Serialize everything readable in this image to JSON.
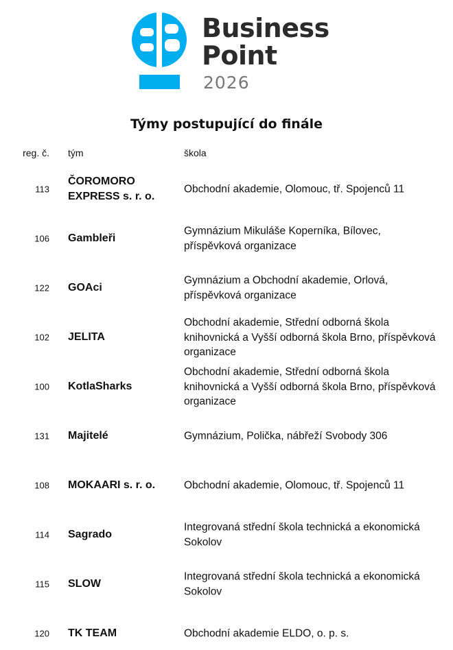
{
  "brand": {
    "line1": "Business",
    "line2": "Point",
    "year": "2026",
    "color": "#00aeef"
  },
  "title": "Týmy postupující do finále",
  "headers": {
    "reg": "reg. č.",
    "team": "tým",
    "school": "škola"
  },
  "rows": [
    {
      "reg": "113",
      "team": "ČOROMORO EXPRESS s. r. o.",
      "school": "Obchodní akademie, Olomouc, tř. Spojenců 11"
    },
    {
      "reg": "106",
      "team": "Gambleři",
      "school": "Gymnázium Mikuláše Koperníka, Bílovec, příspěvková organizace"
    },
    {
      "reg": "122",
      "team": "GOAci",
      "school": "Gymnázium a Obchodní akademie, Orlová, příspěvková organizace"
    },
    {
      "reg": "102",
      "team": "JELITA",
      "school": "Obchodní akademie, Střední odborná škola knihovnická a Vyšší odborná škola Brno, příspěvková organizace"
    },
    {
      "reg": "100",
      "team": "KotlaSharks",
      "school": "Obchodní akademie, Střední odborná škola knihovnická a Vyšší odborná škola Brno, příspěvková organizace"
    },
    {
      "reg": "131",
      "team": "Majitelé",
      "school": "Gymnázium, Polička, nábřeží Svobody 306"
    },
    {
      "reg": "108",
      "team": "MOKAARI s. r. o.",
      "school": "Obchodní akademie, Olomouc, tř. Spojenců 11"
    },
    {
      "reg": "114",
      "team": "Sagrado",
      "school": "Integrovaná střední škola technická a ekonomická Sokolov"
    },
    {
      "reg": "115",
      "team": "SLOW",
      "school": "Integrovaná střední škola technická a ekonomická Sokolov"
    },
    {
      "reg": "120",
      "team": "TK TEAM",
      "school": "Obchodní akademie ELDO, o. p. s."
    }
  ]
}
